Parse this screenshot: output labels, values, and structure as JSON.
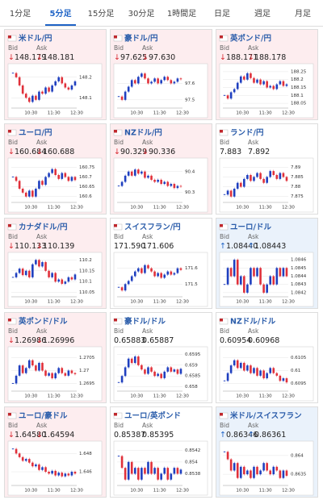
{
  "tabs": [
    "1分足",
    "5分足",
    "15分足",
    "30分足",
    "1時間足",
    "日足",
    "週足",
    "月足"
  ],
  "active_tab": 1,
  "bid_label": "Bid",
  "ask_label": "Ask",
  "arrows": {
    "down": "↓",
    "up": "↑"
  },
  "panel_colors": {
    "down": "#fdedef",
    "up": "#eaf2fb",
    "flat": "#ffffff"
  },
  "candle_colors": {
    "up": "#1f3fbf",
    "down": "#e0303a"
  },
  "x_labels": [
    "10:30",
    "11:30",
    "12:30"
  ],
  "panels": [
    {
      "name": "米ドル/円",
      "trend": "down",
      "bid": "148.179",
      "ask": "148.181",
      "ylim": [
        148.05,
        148.25
      ],
      "yticks": [
        148.2,
        148.1
      ],
      "closes": [
        148.22,
        148.2,
        148.16,
        148.12,
        148.1,
        148.08,
        148.11,
        148.09,
        148.13,
        148.12,
        148.15,
        148.13,
        148.16,
        148.18,
        148.2,
        148.17,
        148.15,
        148.14,
        148.16,
        148.18
      ]
    },
    {
      "name": "豪ドル/円",
      "trend": "down",
      "bid": "97.625",
      "ask": "97.630",
      "ylim": [
        97.45,
        97.7
      ],
      "yticks": [
        97.6,
        97.5
      ],
      "closes": [
        97.52,
        97.5,
        97.55,
        97.58,
        97.62,
        97.6,
        97.64,
        97.66,
        97.63,
        97.6,
        97.61,
        97.63,
        97.6,
        97.62,
        97.64,
        97.62,
        97.6,
        97.61,
        97.63,
        97.625
      ]
    },
    {
      "name": "英ポンド/円",
      "trend": "down",
      "bid": "188.171",
      "ask": "188.178",
      "ylim": [
        188.02,
        188.28
      ],
      "yticks": [
        188.25,
        188.2,
        188.15,
        188.1,
        188.05
      ],
      "closes": [
        188.1,
        188.08,
        188.12,
        188.14,
        188.18,
        188.22,
        188.2,
        188.24,
        188.21,
        188.18,
        188.2,
        188.17,
        188.19,
        188.15,
        188.16,
        188.14,
        188.17,
        188.19,
        188.16,
        188.17
      ]
    },
    {
      "name": "ユーロ/円",
      "trend": "down",
      "bid": "160.684",
      "ask": "160.688",
      "ylim": [
        160.57,
        160.78
      ],
      "yticks": [
        160.75,
        160.7,
        160.65,
        160.6
      ],
      "closes": [
        160.7,
        160.68,
        160.64,
        160.62,
        160.6,
        160.63,
        160.6,
        160.64,
        160.68,
        160.66,
        160.7,
        160.72,
        160.74,
        160.71,
        160.69,
        160.72,
        160.7,
        160.68,
        160.7,
        160.684
      ]
    },
    {
      "name": "NZドル/円",
      "trend": "down",
      "bid": "90.329",
      "ask": "90.336",
      "ylim": [
        90.25,
        90.45
      ],
      "yticks": [
        90.4,
        90.3
      ],
      "closes": [
        90.33,
        90.35,
        90.38,
        90.4,
        90.38,
        90.41,
        90.39,
        90.4,
        90.37,
        90.38,
        90.36,
        90.35,
        90.36,
        90.34,
        90.35,
        90.33,
        90.34,
        90.32,
        90.33,
        90.329
      ]
    },
    {
      "name": "ランド/円",
      "trend": "flat",
      "bid": "7.883",
      "ask": "7.892",
      "ylim": [
        7.872,
        7.893
      ],
      "yticks": [
        7.89,
        7.885,
        7.88,
        7.875
      ],
      "closes": [
        7.876,
        7.878,
        7.875,
        7.879,
        7.882,
        7.88,
        7.884,
        7.886,
        7.883,
        7.885,
        7.887,
        7.884,
        7.882,
        7.885,
        7.888,
        7.886,
        7.884,
        7.887,
        7.885,
        7.883
      ]
    },
    {
      "name": "カナダドル/円",
      "trend": "down",
      "bid": "110.133",
      "ask": "110.139",
      "ylim": [
        110.03,
        110.22
      ],
      "yticks": [
        110.2,
        110.15,
        110.1,
        110.05
      ],
      "closes": [
        110.12,
        110.14,
        110.16,
        110.13,
        110.15,
        110.12,
        110.18,
        110.2,
        110.17,
        110.19,
        110.15,
        110.12,
        110.14,
        110.1,
        110.11,
        110.09,
        110.1,
        110.12,
        110.11,
        110.133
      ]
    },
    {
      "name": "スイスフラン/円",
      "trend": "flat",
      "bid": "171.590",
      "ask": "171.606",
      "ylim": [
        171.42,
        171.68
      ],
      "yticks": [
        171.6,
        171.5
      ],
      "closes": [
        171.48,
        171.46,
        171.5,
        171.52,
        171.55,
        171.58,
        171.6,
        171.57,
        171.62,
        171.6,
        171.58,
        171.55,
        171.57,
        171.54,
        171.56,
        171.58,
        171.56,
        171.57,
        171.6,
        171.59
      ]
    },
    {
      "name": "ユーロ/ドル",
      "trend": "up",
      "bid": "1.08440",
      "ask": "1.08443",
      "ylim": [
        1.08415,
        1.08465
      ],
      "yticks": [
        1.0846,
        1.0845,
        1.0844,
        1.0843,
        1.0842
      ],
      "closes": [
        1.0843,
        1.0845,
        1.0844,
        1.0846,
        1.0843,
        1.0844,
        1.0842,
        1.0843,
        1.0845,
        1.0844,
        1.0845,
        1.0843,
        1.0842,
        1.0843,
        1.0844,
        1.0843,
        1.0845,
        1.0844,
        1.0845,
        1.0844
      ]
    },
    {
      "name": "英ポンド/ドル",
      "trend": "down",
      "bid": "1.26986",
      "ask": "1.26996",
      "ylim": [
        1.2692,
        1.2708
      ],
      "yticks": [
        1.2705,
        1.27,
        1.2695
      ],
      "closes": [
        1.2695,
        1.2698,
        1.2702,
        1.2699,
        1.2701,
        1.2704,
        1.2702,
        1.27,
        1.2703,
        1.27,
        1.2698,
        1.2699,
        1.2697,
        1.2699,
        1.2701,
        1.2699,
        1.2698,
        1.27,
        1.2699,
        1.26986
      ]
    },
    {
      "name": "豪ドル/ドル",
      "trend": "flat",
      "bid": "0.65883",
      "ask": "0.65887",
      "ylim": [
        0.6578,
        0.6597
      ],
      "yticks": [
        0.6595,
        0.659,
        0.6585,
        0.658
      ],
      "closes": [
        0.6582,
        0.6585,
        0.6589,
        0.6593,
        0.6591,
        0.6594,
        0.659,
        0.6588,
        0.6586,
        0.6589,
        0.6587,
        0.6585,
        0.6586,
        0.6584,
        0.6587,
        0.6589,
        0.6587,
        0.6588,
        0.6586,
        0.65883
      ]
    },
    {
      "name": "NZドル/ドル",
      "trend": "flat",
      "bid": "0.60954",
      "ask": "0.60968",
      "ylim": [
        0.6092,
        0.6108
      ],
      "yticks": [
        0.6105,
        0.61,
        0.6095
      ],
      "closes": [
        0.6096,
        0.6099,
        0.6102,
        0.6104,
        0.6101,
        0.6103,
        0.61,
        0.6102,
        0.6099,
        0.6101,
        0.6098,
        0.61,
        0.6097,
        0.6099,
        0.6101,
        0.6099,
        0.6098,
        0.6096,
        0.6097,
        0.60954
      ]
    },
    {
      "name": "ユーロ/豪ドル",
      "trend": "down",
      "bid": "1.64580",
      "ask": "1.64594",
      "ylim": [
        1.6445,
        1.649
      ],
      "yticks": [
        1.648,
        1.646
      ],
      "closes": [
        1.6485,
        1.648,
        1.6476,
        1.6472,
        1.6474,
        1.647,
        1.6466,
        1.6468,
        1.6462,
        1.6465,
        1.646,
        1.6458,
        1.6461,
        1.6456,
        1.6459,
        1.6455,
        1.6458,
        1.6456,
        1.646,
        1.6458
      ]
    },
    {
      "name": "ユーロ/英ポンド",
      "trend": "flat",
      "bid": "0.85387",
      "ask": "0.85395",
      "ylim": [
        0.8536,
        0.8543
      ],
      "yticks": [
        0.8542,
        0.854,
        0.8538
      ],
      "closes": [
        0.8541,
        0.8539,
        0.8537,
        0.854,
        0.8538,
        0.8539,
        0.8537,
        0.8539,
        0.8538,
        0.854,
        0.8538,
        0.8539,
        0.8537,
        0.8538,
        0.8539,
        0.8537,
        0.8538,
        0.8539,
        0.8538,
        0.85387
      ]
    },
    {
      "name": "米ドル/スイスフラン",
      "trend": "up",
      "bid": "0.86346",
      "ask": "0.86361",
      "ylim": [
        0.8632,
        0.8643
      ],
      "yticks": [
        0.864,
        0.8635
      ],
      "closes": [
        0.8641,
        0.8639,
        0.8636,
        0.8638,
        0.8634,
        0.8637,
        0.8635,
        0.8636,
        0.8634,
        0.8637,
        0.8635,
        0.8636,
        0.8638,
        0.8636,
        0.8635,
        0.8637,
        0.8636,
        0.8634,
        0.8636,
        0.86346
      ]
    }
  ]
}
